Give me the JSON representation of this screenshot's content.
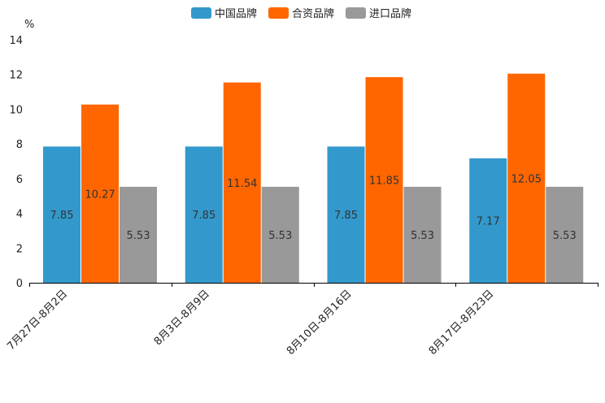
{
  "chart_data": {
    "type": "bar",
    "ylabel": "%",
    "ylim": [
      0,
      14
    ],
    "yticks": [
      0,
      2,
      4,
      6,
      8,
      10,
      12,
      14
    ],
    "categories": [
      "7月27日-8月2日",
      "8月3日-8月9日",
      "8月10日-8月16日",
      "8月17日-8月23日"
    ],
    "series": [
      {
        "name": "中国品牌",
        "color": "#3399cc",
        "values": [
          7.85,
          7.85,
          7.85,
          7.17
        ]
      },
      {
        "name": "合资品牌",
        "color": "#ff6600",
        "values": [
          10.27,
          11.54,
          11.85,
          12.05
        ]
      },
      {
        "name": "进口品牌",
        "color": "#999999",
        "values": [
          5.53,
          5.53,
          5.53,
          5.53
        ]
      }
    ],
    "legend": "top-center",
    "grid": false
  }
}
